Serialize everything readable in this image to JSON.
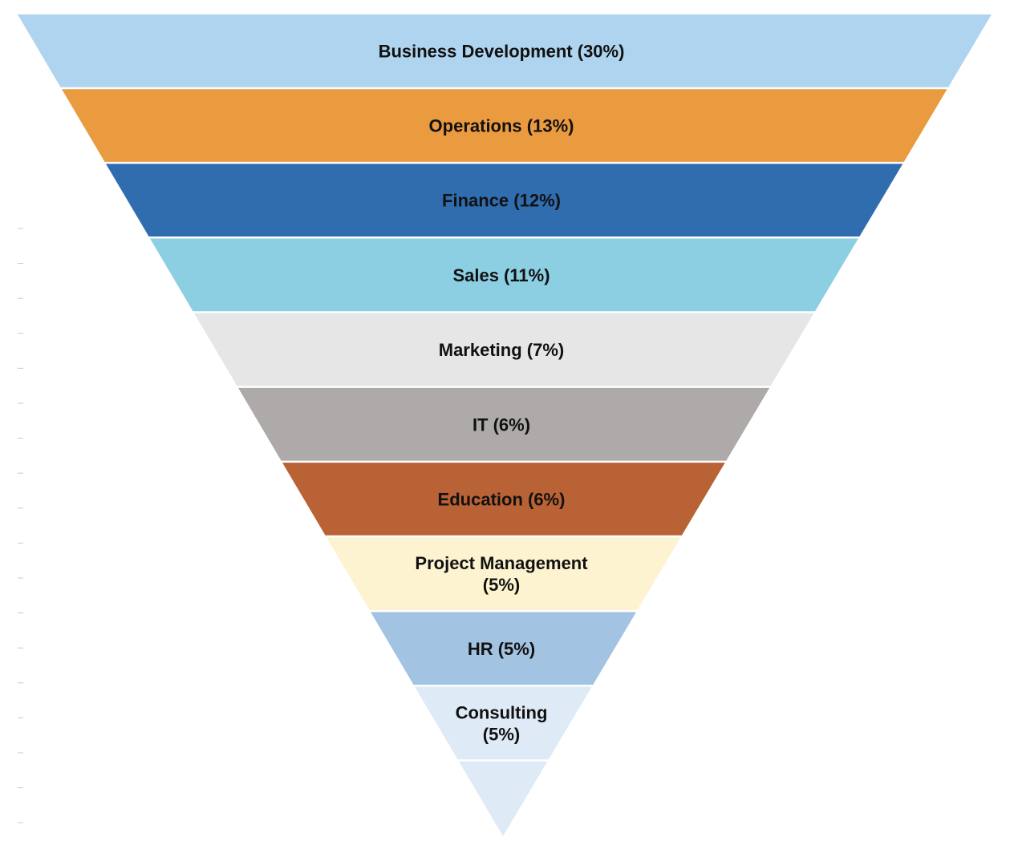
{
  "chart_data": {
    "type": "funnel",
    "title": "",
    "segments": [
      {
        "label": "Business Development (30%)",
        "lines": [
          "Business Development (30%)"
        ],
        "value": 30,
        "color": "#aed4ef"
      },
      {
        "label": "Operations (13%)",
        "lines": [
          "Operations (13%)"
        ],
        "value": 13,
        "color": "#ea9a3f"
      },
      {
        "label": "Finance (12%)",
        "lines": [
          "Finance (12%)"
        ],
        "value": 12,
        "color": "#306daf"
      },
      {
        "label": "Sales (11%)",
        "lines": [
          "Sales (11%)"
        ],
        "value": 11,
        "color": "#8ccfe3"
      },
      {
        "label": "Marketing (7%)",
        "lines": [
          "Marketing (7%)"
        ],
        "value": 7,
        "color": "#e6e6e6"
      },
      {
        "label": "IT (6%)",
        "lines": [
          "IT (6%)"
        ],
        "value": 6,
        "color": "#aeaaa9"
      },
      {
        "label": "Education (6%)",
        "lines": [
          "Education (6%)"
        ],
        "value": 6,
        "color": "#b96235"
      },
      {
        "label": "Project Management (5%)",
        "lines": [
          "Project Management",
          "(5%)"
        ],
        "value": 5,
        "color": "#fdf3d0"
      },
      {
        "label": "HR (5%)",
        "lines": [
          "HR (5%)"
        ],
        "value": 5,
        "color": "#a3c3e2"
      },
      {
        "label": "Consulting (5%)",
        "lines": [
          "Consulting",
          "(5%)"
        ],
        "value": 5,
        "color": "#deeaf5"
      },
      {
        "label": "",
        "lines": [],
        "value": null,
        "color": "#deeaf5"
      }
    ]
  }
}
